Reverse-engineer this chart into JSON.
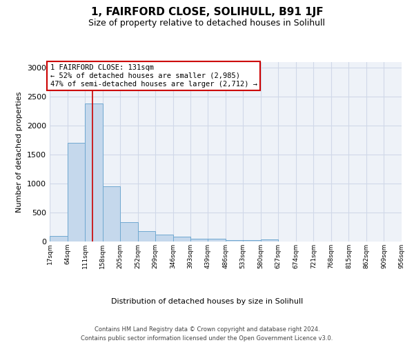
{
  "title": "1, FAIRFORD CLOSE, SOLIHULL, B91 1JF",
  "subtitle": "Size of property relative to detached houses in Solihull",
  "xlabel": "Distribution of detached houses by size in Solihull",
  "ylabel": "Number of detached properties",
  "bin_edges": [
    17,
    64,
    111,
    158,
    205,
    252,
    299,
    346,
    393,
    439,
    486,
    533,
    580,
    627,
    674,
    721,
    768,
    815,
    862,
    909,
    956
  ],
  "bar_heights": [
    100,
    1700,
    2390,
    950,
    330,
    175,
    125,
    80,
    50,
    50,
    25,
    20,
    30,
    5,
    5,
    3,
    2,
    2,
    2,
    2
  ],
  "bar_color": "#c5d8ec",
  "bar_edge_color": "#6fa8d0",
  "grid_color": "#d0d8e8",
  "background_color": "#eef2f8",
  "property_line_x": 131,
  "annotation_text": "1 FAIRFORD CLOSE: 131sqm\n← 52% of detached houses are smaller (2,985)\n47% of semi-detached houses are larger (2,712) →",
  "annotation_box_color": "#ffffff",
  "annotation_border_color": "#cc0000",
  "footer_line1": "Contains HM Land Registry data © Crown copyright and database right 2024.",
  "footer_line2": "Contains public sector information licensed under the Open Government Licence v3.0.",
  "ylim": [
    0,
    3100
  ],
  "yticks": [
    0,
    500,
    1000,
    1500,
    2000,
    2500,
    3000
  ],
  "title_fontsize": 11,
  "subtitle_fontsize": 9,
  "tick_labels": [
    "17sqm",
    "64sqm",
    "111sqm",
    "158sqm",
    "205sqm",
    "252sqm",
    "299sqm",
    "346sqm",
    "393sqm",
    "439sqm",
    "486sqm",
    "533sqm",
    "580sqm",
    "627sqm",
    "674sqm",
    "721sqm",
    "768sqm",
    "815sqm",
    "862sqm",
    "909sqm",
    "956sqm"
  ]
}
